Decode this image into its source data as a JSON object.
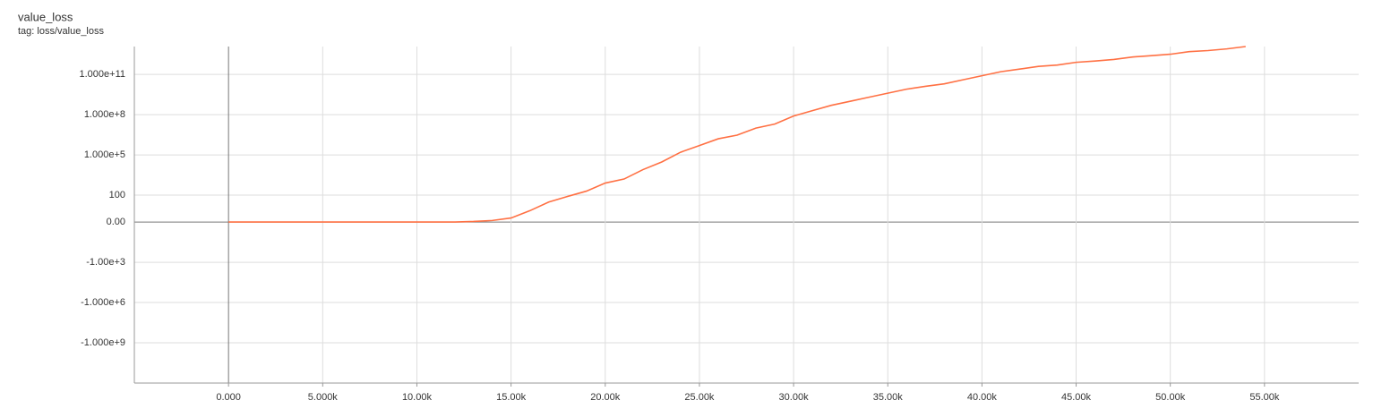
{
  "chart_data": {
    "type": "line",
    "title": "value_loss",
    "subtitle": "tag: loss/value_loss",
    "yscale": "symlog",
    "grid": true,
    "xlim": [
      -5000,
      60000
    ],
    "xticks": [
      {
        "value": 0,
        "label": "0.000"
      },
      {
        "value": 5000,
        "label": "5.000k"
      },
      {
        "value": 10000,
        "label": "10.00k"
      },
      {
        "value": 15000,
        "label": "15.00k"
      },
      {
        "value": 20000,
        "label": "20.00k"
      },
      {
        "value": 25000,
        "label": "25.00k"
      },
      {
        "value": 30000,
        "label": "30.00k"
      },
      {
        "value": 35000,
        "label": "35.00k"
      },
      {
        "value": 40000,
        "label": "40.00k"
      },
      {
        "value": 45000,
        "label": "45.00k"
      },
      {
        "value": 50000,
        "label": "50.00k"
      },
      {
        "value": 55000,
        "label": "55.00k"
      }
    ],
    "ylim": [
      -1000000000000.0,
      12000000000000.0
    ],
    "yticks": [
      {
        "value": 100000000000,
        "label": "1.000e+11"
      },
      {
        "value": 100000000,
        "label": "1.000e+8"
      },
      {
        "value": 100000,
        "label": "1.000e+5"
      },
      100,
      {
        "value": 0,
        "label": "0.00"
      },
      {
        "value": -1000,
        "label": "-1.00e+3"
      },
      {
        "value": -1000000,
        "label": "-1.000e+6"
      },
      {
        "value": -1000000000,
        "label": "-1.000e+9"
      }
    ],
    "x": [
      0,
      1000,
      2000,
      3000,
      4000,
      5000,
      6000,
      7000,
      8000,
      9000,
      10000,
      11000,
      12000,
      13000,
      14000,
      15000,
      16000,
      17000,
      18000,
      19000,
      20000,
      21000,
      22000,
      23000,
      24000,
      25000,
      26000,
      27000,
      28000,
      29000,
      30000,
      31000,
      32000,
      33000,
      34000,
      35000,
      36000,
      37000,
      38000,
      39000,
      40000,
      41000,
      42000,
      43000,
      44000,
      45000,
      46000,
      47000,
      48000,
      49000,
      50000,
      51000,
      52000,
      53000,
      54000
    ],
    "series": [
      {
        "name": "value_loss",
        "color": "#ff7043",
        "values": [
          0,
          0,
          0,
          0,
          0,
          0,
          0,
          0,
          0,
          0,
          0,
          0,
          0,
          0.1,
          0.3,
          1,
          6,
          30,
          80,
          200,
          800,
          1600,
          8000,
          30000,
          160000,
          500000,
          1600000,
          3000000,
          10000000,
          20000000,
          80000000,
          200000000,
          500000000,
          1000000000,
          2000000000,
          4000000000,
          8000000000,
          13000000000,
          20000000000,
          40000000000,
          80000000000,
          160000000000,
          250000000000,
          400000000000,
          500000000000,
          800000000000,
          1000000000000,
          1300000000000,
          2000000000000,
          2500000000000,
          3200000000000,
          5000000000000,
          6000000000000,
          8000000000000,
          12000000000000
        ]
      }
    ]
  }
}
